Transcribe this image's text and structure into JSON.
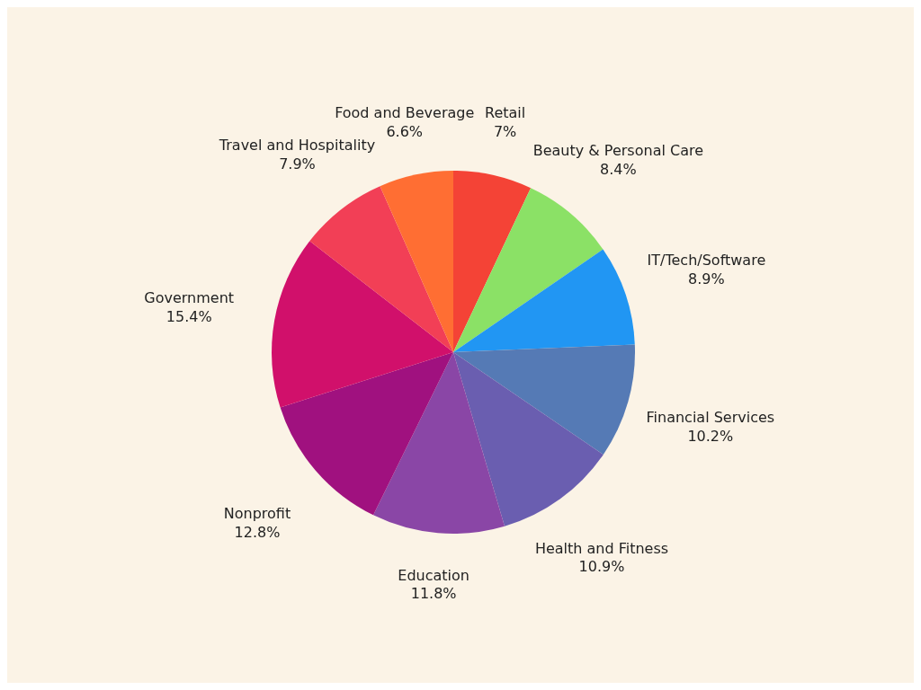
{
  "chart_data": {
    "type": "pie",
    "categories": [
      "Retail",
      "Beauty & Personal Care",
      "IT/Tech/Software",
      "Financial Services",
      "Health and Fitness",
      "Education",
      "Nonprofit",
      "Government",
      "Travel and Hospitality",
      "Food and Beverage"
    ],
    "values": [
      7,
      8.4,
      8.9,
      10.2,
      10.9,
      11.8,
      12.8,
      15.4,
      7.9,
      6.6
    ],
    "value_labels": [
      "7%",
      "8.4%",
      "8.9%",
      "10.2%",
      "10.9%",
      "11.8%",
      "12.8%",
      "15.4%",
      "7.9%",
      "6.6%"
    ],
    "colors": [
      "#f44336",
      "#8be166",
      "#2196f3",
      "#557ab5",
      "#6a5eb0",
      "#8a46a6",
      "#a0117f",
      "#d1106b",
      "#f23f56",
      "#ff6e33"
    ],
    "legend": false
  }
}
